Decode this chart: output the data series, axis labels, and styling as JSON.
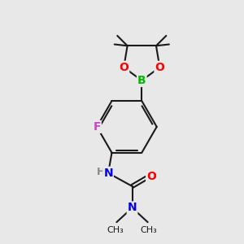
{
  "bg_color": "#e8e8e8",
  "bond_color": "#1a1a1a",
  "bond_width": 1.5,
  "atom_colors": {
    "B": "#00bb00",
    "O": "#ff0000",
    "N": "#0000ee",
    "F": "#cc44cc",
    "H": "#888888",
    "C": "#1a1a1a"
  },
  "font_size_atom": 10,
  "font_size_small": 8
}
